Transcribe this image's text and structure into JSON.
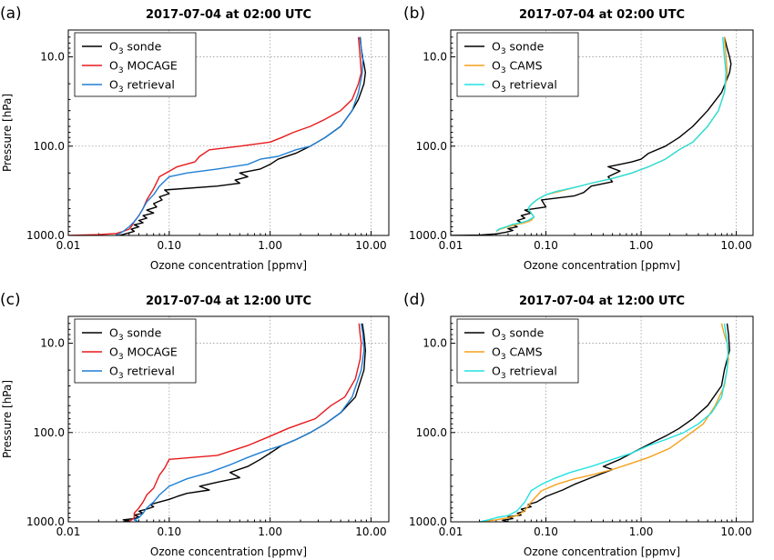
{
  "chart_data": [
    {
      "type": "line",
      "panel_label": "(a)",
      "title": "2017-07-04 at 02:00 UTC",
      "xlabel": "Ozone concentration [ppmv]",
      "ylabel": "Pressure [hPa]",
      "xscale": "log",
      "yscale": "log",
      "y_inverted": true,
      "xlim": [
        0.01,
        15
      ],
      "ylim": [
        1000,
        5
      ],
      "xticks": [
        "0.01",
        "0.10",
        "1.00",
        "10.00"
      ],
      "yticks": [
        "10.0",
        "100.0",
        "1000.0"
      ],
      "grid": true,
      "legend_position": "top-left",
      "series": [
        {
          "name": "O3 sonde",
          "legend_main": "O",
          "legend_sub": "3",
          "legend_rest": " sonde",
          "color": "#000000",
          "x": [
            0.032,
            0.038,
            0.045,
            0.042,
            0.05,
            0.045,
            0.055,
            0.05,
            0.06,
            0.055,
            0.07,
            0.06,
            0.075,
            0.07,
            0.085,
            0.08,
            0.1,
            0.09,
            0.3,
            0.5,
            0.45,
            0.6,
            0.5,
            0.8,
            1.0,
            1.2,
            1.8,
            2.5,
            3.5,
            5.0,
            6.5,
            7.5,
            8.5,
            8.8,
            8.5,
            8.2,
            8.0,
            7.8
          ],
          "y": [
            1000,
            950,
            900,
            850,
            800,
            760,
            720,
            680,
            640,
            600,
            560,
            520,
            480,
            440,
            400,
            370,
            340,
            310,
            280,
            260,
            240,
            220,
            200,
            180,
            160,
            140,
            120,
            100,
            80,
            60,
            40,
            30,
            20,
            15,
            12,
            10,
            8,
            6
          ]
        },
        {
          "name": "O3 MOCAGE",
          "legend_main": "O",
          "legend_sub": "3",
          "legend_rest": " MOCAGE",
          "color": "#e8191b",
          "x": [
            0.01,
            0.02,
            0.03,
            0.035,
            0.04,
            0.042,
            0.045,
            0.05,
            0.055,
            0.06,
            0.07,
            0.08,
            0.12,
            0.18,
            0.2,
            0.25,
            0.5,
            1.0,
            1.3,
            1.7,
            2.5,
            3.5,
            5.0,
            6.5,
            7.5,
            8.0,
            7.8,
            7.5
          ],
          "y": [
            1000,
            980,
            950,
            900,
            850,
            800,
            700,
            600,
            500,
            400,
            300,
            220,
            170,
            150,
            130,
            110,
            100,
            90,
            80,
            70,
            60,
            50,
            40,
            30,
            20,
            15,
            10,
            6
          ]
        },
        {
          "name": "O3 retrieval",
          "legend_main": "O",
          "legend_sub": "3",
          "legend_rest": " retrieval",
          "color": "#1f7fd4",
          "x": [
            0.03,
            0.035,
            0.04,
            0.045,
            0.05,
            0.055,
            0.06,
            0.07,
            0.08,
            0.1,
            0.15,
            0.3,
            0.6,
            0.8,
            1.2,
            1.8,
            2.5,
            3.5,
            5.0,
            6.5,
            7.5,
            8.2,
            8.3,
            8.0,
            7.7
          ],
          "y": [
            1000,
            900,
            800,
            700,
            600,
            500,
            420,
            350,
            280,
            220,
            200,
            180,
            160,
            140,
            130,
            110,
            100,
            80,
            60,
            40,
            25,
            15,
            10,
            8,
            6
          ]
        }
      ]
    },
    {
      "type": "line",
      "panel_label": "(b)",
      "title": "2017-07-04 at 02:00 UTC",
      "xlabel": "Ozone concentration [ppmv]",
      "ylabel": "",
      "xscale": "log",
      "yscale": "log",
      "y_inverted": true,
      "xlim": [
        0.01,
        15
      ],
      "ylim": [
        1000,
        5
      ],
      "xticks": [
        "0.01",
        "0.10",
        "1.00",
        "10.00"
      ],
      "yticks": [
        "10.0",
        "100.0",
        "1000.0"
      ],
      "grid": true,
      "legend_position": "top-left",
      "series": [
        {
          "name": "O3 sonde",
          "legend_main": "O",
          "legend_sub": "3",
          "legend_rest": " sonde",
          "color": "#000000",
          "x": [
            0.01,
            0.02,
            0.03,
            0.038,
            0.045,
            0.04,
            0.05,
            0.045,
            0.055,
            0.05,
            0.06,
            0.055,
            0.07,
            0.06,
            0.1,
            0.09,
            0.2,
            0.25,
            0.3,
            0.5,
            0.45,
            0.6,
            0.45,
            0.6,
            0.8,
            1.0,
            1.2,
            1.8,
            2.5,
            3.5,
            5.0,
            7.0,
            8.5,
            8.8,
            8.5,
            8.0,
            7.5
          ],
          "y": [
            1000,
            990,
            960,
            920,
            880,
            840,
            800,
            760,
            720,
            680,
            640,
            600,
            560,
            520,
            480,
            400,
            360,
            330,
            280,
            250,
            220,
            190,
            170,
            160,
            150,
            140,
            120,
            100,
            80,
            60,
            40,
            25,
            15,
            12,
            10,
            8,
            6
          ]
        },
        {
          "name": "O3 CAMS",
          "legend_main": "O",
          "legend_sub": "3",
          "legend_rest": " CAMS",
          "color": "#f5a11a",
          "x": [
            0.03,
            0.033,
            0.04,
            0.05,
            0.06,
            0.07,
            0.075,
            0.07,
            0.065,
            0.07,
            0.08,
            0.1,
            0.14,
            0.2,
            0.3,
            0.5,
            0.8,
            1.2,
            1.8,
            2.5,
            3.5,
            5.0,
            6.5,
            7.5,
            8.0,
            7.8,
            7.5
          ],
          "y": [
            900,
            850,
            800,
            750,
            720,
            680,
            620,
            560,
            500,
            450,
            400,
            350,
            320,
            290,
            260,
            230,
            200,
            170,
            140,
            110,
            90,
            60,
            40,
            25,
            15,
            10,
            6
          ]
        },
        {
          "name": "O3 retrieval",
          "legend_main": "O",
          "legend_sub": "3",
          "legend_rest": " retrieval",
          "color": "#22e2e2",
          "x": [
            0.03,
            0.032,
            0.038,
            0.045,
            0.055,
            0.065,
            0.075,
            0.07,
            0.065,
            0.07,
            0.08,
            0.1,
            0.13,
            0.2,
            0.3,
            0.5,
            0.8,
            1.2,
            1.8,
            2.5,
            3.5,
            5.0,
            6.5,
            7.5,
            7.8,
            7.5,
            7.2
          ],
          "y": [
            900,
            850,
            800,
            750,
            720,
            680,
            620,
            560,
            500,
            450,
            400,
            350,
            320,
            290,
            260,
            230,
            200,
            170,
            140,
            110,
            90,
            60,
            40,
            25,
            15,
            10,
            6
          ]
        }
      ]
    },
    {
      "type": "line",
      "panel_label": "(c)",
      "title": "2017-07-04 at 12:00 UTC",
      "xlabel": "Ozone concentration [ppmv]",
      "ylabel": "Pressure [hPa]",
      "xscale": "log",
      "yscale": "log",
      "y_inverted": true,
      "xlim": [
        0.01,
        15
      ],
      "ylim": [
        1000,
        5
      ],
      "xticks": [
        "0.01",
        "0.10",
        "1.00",
        "10.00"
      ],
      "yticks": [
        "10.0",
        "100.0",
        "1000.0"
      ],
      "grid": true,
      "legend_position": "top-left",
      "series": [
        {
          "name": "O3 sonde",
          "legend_main": "O",
          "legend_sub": "3",
          "legend_rest": " sonde",
          "color": "#000000",
          "x": [
            0.035,
            0.04,
            0.035,
            0.045,
            0.05,
            0.045,
            0.055,
            0.05,
            0.06,
            0.07,
            0.065,
            0.08,
            0.1,
            0.12,
            0.15,
            0.25,
            0.2,
            0.3,
            0.5,
            0.4,
            0.6,
            0.8,
            1.0,
            1.3,
            1.8,
            2.5,
            3.5,
            5.0,
            7.0,
            8.5,
            8.8,
            8.5,
            8.2
          ],
          "y": [
            1000,
            980,
            950,
            920,
            880,
            840,
            800,
            760,
            720,
            680,
            640,
            600,
            560,
            520,
            480,
            440,
            400,
            360,
            320,
            280,
            240,
            200,
            170,
            140,
            120,
            100,
            80,
            60,
            40,
            20,
            12,
            8,
            6
          ]
        },
        {
          "name": "O3 MOCAGE",
          "legend_main": "O",
          "legend_sub": "3",
          "legend_rest": " MOCAGE",
          "color": "#e8191b",
          "x": [
            0.04,
            0.045,
            0.045,
            0.05,
            0.055,
            0.06,
            0.07,
            0.08,
            0.09,
            0.1,
            0.3,
            0.6,
            1.0,
            1.5,
            2.0,
            2.8,
            4.0,
            5.5,
            7.0,
            7.8,
            8.0,
            7.8,
            7.6
          ],
          "y": [
            1000,
            900,
            800,
            700,
            600,
            500,
            420,
            300,
            250,
            200,
            180,
            140,
            110,
            90,
            80,
            70,
            50,
            40,
            25,
            15,
            10,
            8,
            6
          ]
        },
        {
          "name": "O3 retrieval",
          "legend_main": "O",
          "legend_sub": "3",
          "legend_rest": " retrieval",
          "color": "#1f7fd4",
          "x": [
            0.05,
            0.045,
            0.05,
            0.055,
            0.06,
            0.07,
            0.08,
            0.1,
            0.15,
            0.25,
            0.4,
            0.6,
            0.9,
            1.3,
            1.8,
            2.5,
            3.5,
            5.0,
            6.5,
            8.0,
            8.5,
            8.3,
            8.0
          ],
          "y": [
            1000,
            950,
            900,
            800,
            700,
            600,
            500,
            400,
            330,
            280,
            230,
            190,
            160,
            140,
            120,
            100,
            80,
            60,
            40,
            20,
            12,
            8,
            6
          ]
        }
      ]
    },
    {
      "type": "line",
      "panel_label": "(d)",
      "title": "2017-07-04 at 12:00 UTC",
      "xlabel": "Ozone concentration [ppmv]",
      "ylabel": "",
      "xscale": "log",
      "yscale": "log",
      "y_inverted": true,
      "xlim": [
        0.01,
        15
      ],
      "ylim": [
        1000,
        5
      ],
      "xticks": [
        "0.01",
        "0.10",
        "1.00",
        "10.00"
      ],
      "yticks": [
        "10.0",
        "100.0",
        "1000.0"
      ],
      "grid": true,
      "legend_position": "top-left",
      "series": [
        {
          "name": "O3 sonde",
          "legend_main": "O",
          "legend_sub": "3",
          "legend_rest": " sonde",
          "color": "#000000",
          "x": [
            0.04,
            0.035,
            0.045,
            0.04,
            0.055,
            0.05,
            0.06,
            0.055,
            0.07,
            0.065,
            0.08,
            0.1,
            0.15,
            0.2,
            0.3,
            0.5,
            0.4,
            0.6,
            0.8,
            1.0,
            1.3,
            1.8,
            2.5,
            3.5,
            5.0,
            7.0,
            7.5,
            8.5,
            8.3,
            8.0
          ],
          "y": [
            1000,
            960,
            920,
            880,
            840,
            800,
            760,
            720,
            680,
            640,
            600,
            520,
            440,
            380,
            320,
            260,
            240,
            200,
            170,
            150,
            130,
            110,
            90,
            70,
            50,
            30,
            20,
            12,
            8,
            6
          ]
        },
        {
          "name": "O3 CAMS",
          "legend_main": "O",
          "legend_sub": "3",
          "legend_rest": " CAMS",
          "color": "#f5a11a",
          "x": [
            0.02,
            0.03,
            0.04,
            0.05,
            0.06,
            0.07,
            0.09,
            0.13,
            0.2,
            0.3,
            0.5,
            0.8,
            1.2,
            2.0,
            3.0,
            4.5,
            6.0,
            7.5,
            8.3,
            8.0,
            7.5,
            7.0
          ],
          "y": [
            1000,
            950,
            900,
            850,
            750,
            600,
            450,
            380,
            330,
            300,
            260,
            220,
            190,
            150,
            110,
            80,
            50,
            30,
            15,
            10,
            8,
            6
          ]
        },
        {
          "name": "O3 retrieval",
          "legend_main": "O",
          "legend_sub": "3",
          "legend_rest": " retrieval",
          "color": "#22e2e2",
          "x": [
            0.02,
            0.025,
            0.03,
            0.04,
            0.05,
            0.06,
            0.07,
            0.09,
            0.12,
            0.18,
            0.3,
            0.5,
            0.8,
            1.2,
            1.8,
            2.8,
            4.0,
            5.5,
            7.0,
            8.0,
            8.2,
            7.8,
            7.5
          ],
          "y": [
            1000,
            950,
            900,
            850,
            750,
            600,
            450,
            380,
            330,
            280,
            240,
            200,
            170,
            140,
            120,
            100,
            80,
            60,
            40,
            20,
            12,
            8,
            6
          ]
        }
      ]
    }
  ]
}
